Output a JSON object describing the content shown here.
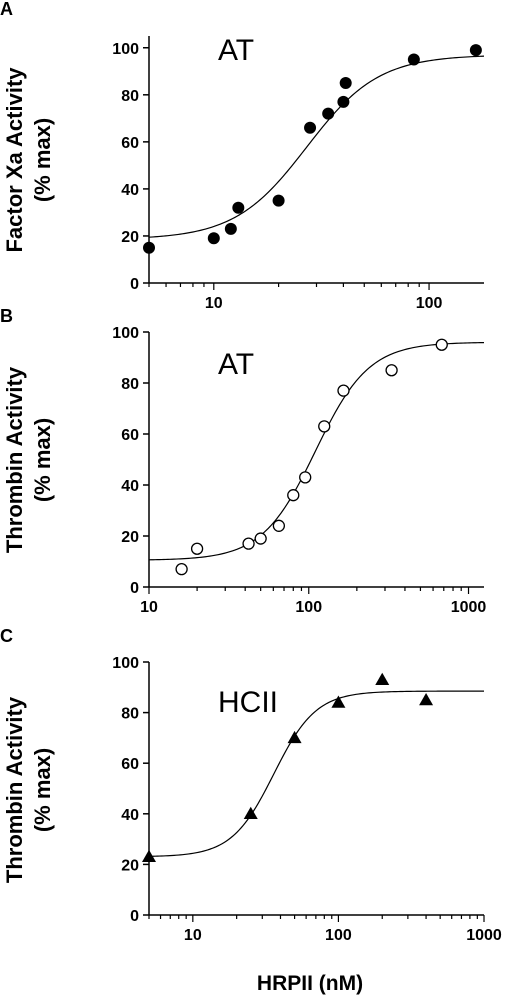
{
  "x_axis_label": "HRPII (nM)",
  "chart_data": [
    {
      "type": "scatter",
      "panel": "A",
      "title": "AT",
      "ylabel_line1": "Factor Xa Activity",
      "ylabel_line2": "(% max)",
      "xscale": "log",
      "xlim": [
        5,
        180
      ],
      "ylim": [
        0,
        105
      ],
      "xticks": [
        10,
        100
      ],
      "yticks": [
        0,
        20,
        40,
        60,
        80,
        100
      ],
      "marker": "filled-circle",
      "points": [
        [
          5,
          15
        ],
        [
          10,
          19
        ],
        [
          12,
          23
        ],
        [
          13,
          32
        ],
        [
          20,
          35
        ],
        [
          28,
          66
        ],
        [
          34,
          72
        ],
        [
          40,
          77
        ],
        [
          41,
          85
        ],
        [
          85,
          95
        ],
        [
          165,
          99
        ]
      ],
      "fit": {
        "bottom": 18.5,
        "top": 97,
        "ec50": 27,
        "hill": 2.6
      }
    },
    {
      "type": "scatter",
      "panel": "B",
      "title": "AT",
      "ylabel_line1": "Thrombin Activity",
      "ylabel_line2": "(% max)",
      "xscale": "log",
      "xlim": [
        10,
        1250
      ],
      "ylim": [
        0,
        100
      ],
      "xticks": [
        10,
        100,
        1000
      ],
      "yticks": [
        0,
        20,
        40,
        60,
        80,
        100
      ],
      "marker": "open-circle",
      "points": [
        [
          16,
          7
        ],
        [
          20,
          15
        ],
        [
          42,
          17
        ],
        [
          50,
          19
        ],
        [
          65,
          24
        ],
        [
          80,
          36
        ],
        [
          95,
          43
        ],
        [
          125,
          63
        ],
        [
          165,
          77
        ],
        [
          330,
          85
        ],
        [
          680,
          95
        ]
      ],
      "fit": {
        "bottom": 10.5,
        "top": 96,
        "ec50": 110,
        "hill": 2.6
      }
    },
    {
      "type": "scatter",
      "panel": "C",
      "title": "HCII",
      "ylabel_line1": "Thrombin Activity",
      "ylabel_line2": "(% max)",
      "xscale": "log",
      "xlim": [
        5,
        1000
      ],
      "ylim": [
        0,
        100
      ],
      "xticks": [
        10,
        100,
        1000
      ],
      "yticks": [
        0,
        20,
        40,
        60,
        80,
        100
      ],
      "marker": "filled-triangle",
      "points": [
        [
          5,
          23
        ],
        [
          25,
          40
        ],
        [
          50,
          70
        ],
        [
          100,
          84
        ],
        [
          200,
          93
        ],
        [
          400,
          85
        ]
      ],
      "fit": {
        "bottom": 23,
        "top": 88.5,
        "ec50": 36,
        "hill": 3
      }
    }
  ]
}
